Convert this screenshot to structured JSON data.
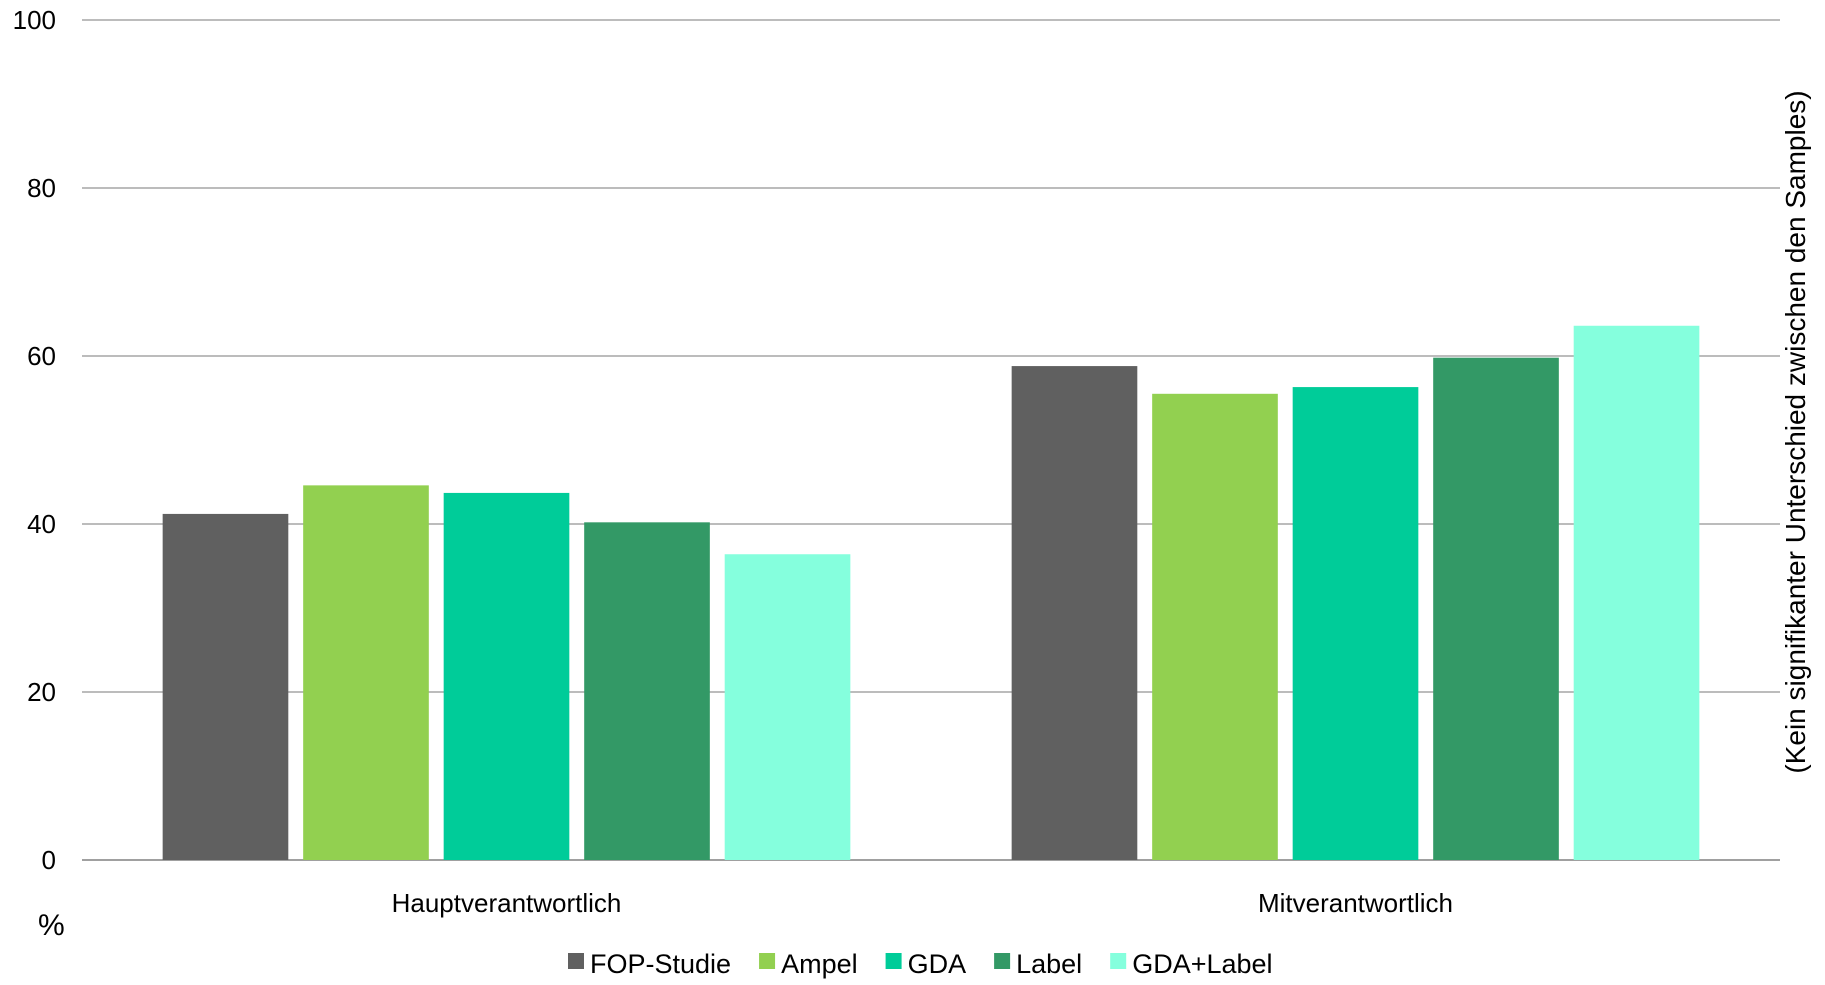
{
  "chart_data": {
    "type": "bar",
    "categories": [
      "Hauptverantwortlich",
      "Mitverantwortlich"
    ],
    "series": [
      {
        "name": "FOP-Studie",
        "color": "#606060",
        "values": [
          41.2,
          58.8
        ]
      },
      {
        "name": "Ampel",
        "color": "#92D050",
        "values": [
          44.6,
          55.5
        ]
      },
      {
        "name": "GDA",
        "color": "#00CC99",
        "values": [
          43.7,
          56.3
        ]
      },
      {
        "name": "Label",
        "color": "#339966",
        "values": [
          40.2,
          59.8
        ]
      },
      {
        "name": "GDA+Label",
        "color": "#85FFDD",
        "values": [
          36.4,
          63.6
        ]
      }
    ],
    "ylim": [
      0,
      100
    ],
    "yticks": [
      "0",
      "20",
      "40",
      "60",
      "80",
      "100"
    ],
    "ylabel": "%",
    "note": "(Kein signifikanter Unterschied zwischen den Samples)",
    "grid": true,
    "legend_position": "bottom"
  }
}
